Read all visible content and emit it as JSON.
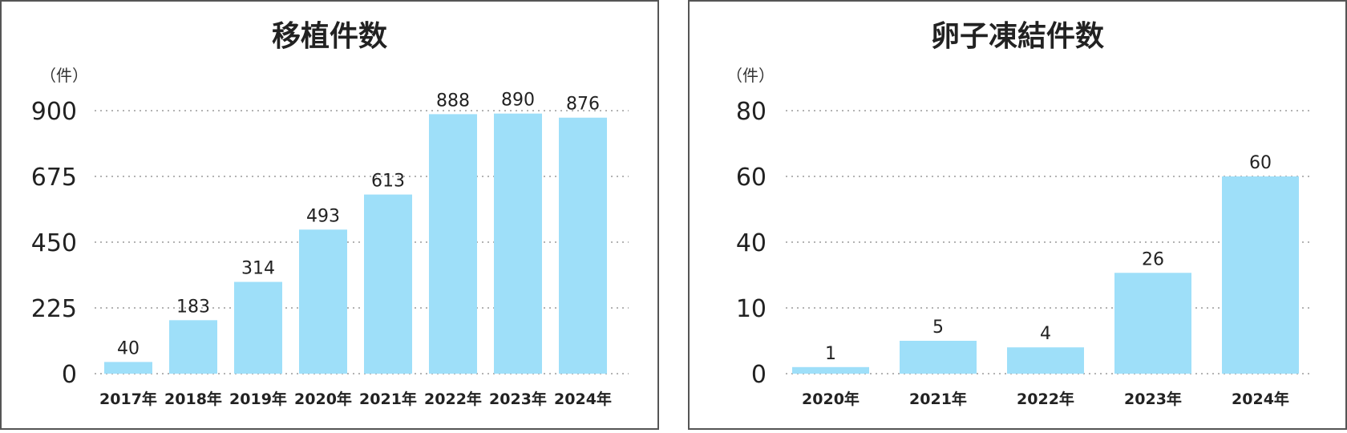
{
  "chart_data": [
    {
      "type": "bar",
      "title": "移植件数",
      "ylabel": "（件）",
      "xlabel": "",
      "categories": [
        "2017年",
        "2018年",
        "2019年",
        "2020年",
        "2021年",
        "2022年",
        "2023年",
        "2024年"
      ],
      "values": [
        40,
        183,
        314,
        493,
        613,
        888,
        890,
        876
      ],
      "yticks": [
        0,
        225,
        450,
        675,
        900
      ],
      "ylim": [
        0,
        900
      ],
      "grid": true,
      "bar_color": "#9EDFF9"
    },
    {
      "type": "bar",
      "title": "卵子凍結件数",
      "ylabel": "（件）",
      "xlabel": "",
      "categories": [
        "2020年",
        "2021年",
        "2022年",
        "2023年",
        "2024年"
      ],
      "values": [
        1,
        5,
        4,
        26,
        60
      ],
      "yticks": [
        0,
        10,
        40,
        60,
        80
      ],
      "ylim": [
        0,
        80
      ],
      "grid": true,
      "bar_color": "#9EDFF9"
    }
  ]
}
